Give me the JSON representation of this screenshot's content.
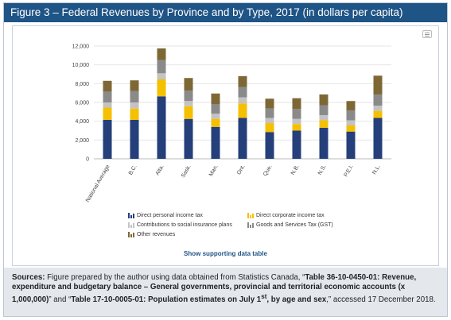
{
  "title": "Figure 3 – Federal Revenues by Province and by Type, 2017 (in dollars per capita)",
  "chart_menu_icon": "hamburger-menu-icon",
  "support_link": "Show supporting data table",
  "sources": {
    "label": "Sources:",
    "text1": " Figure prepared by the author using data obtained from Statistics Canada, “",
    "ref1": "Table 36-10-0450-01: Revenue, expenditure and budgetary balance – General governments, provincial and territorial economic accounts (x 1,000,000)",
    "text2": "” and “",
    "ref2_pre": "Table 17-10-0005-01: Population estimates on July 1",
    "ref2_sup": "st",
    "ref2_post": ", by age and sex",
    "text3": ",” accessed 17 December 2018."
  },
  "chart_data": {
    "type": "bar",
    "stacked": true,
    "title": "",
    "xlabel": "",
    "ylabel": "",
    "ylim": [
      0,
      12000
    ],
    "yticks": [
      0,
      2000,
      4000,
      6000,
      8000,
      10000,
      12000
    ],
    "ytick_labels": [
      "0",
      "2,000",
      "4,000",
      "6,000",
      "8,000",
      "10,000",
      "12,000"
    ],
    "grid": true,
    "legend_position": "bottom",
    "categories": [
      "National Average",
      "B.C.",
      "Alta.",
      "Sask.",
      "Man.",
      "Ont.",
      "Que.",
      "N.B.",
      "N.S.",
      "P.E.I.",
      "N.L."
    ],
    "series": [
      {
        "name": "Direct personal income tax",
        "color": "#243f7a",
        "values": [
          4150,
          4150,
          6650,
          4250,
          3400,
          4350,
          2850,
          3000,
          3300,
          2900,
          4350
        ]
      },
      {
        "name": "Direct corporate income tax",
        "color": "#f5c000",
        "values": [
          1300,
          1200,
          1800,
          1350,
          850,
          1550,
          950,
          700,
          800,
          650,
          750
        ]
      },
      {
        "name": "Contributions to social insurance plans",
        "color": "#c3c3c3",
        "values": [
          550,
          650,
          650,
          550,
          550,
          650,
          550,
          550,
          550,
          550,
          550
        ]
      },
      {
        "name": "Goods and Services Tax (GST)",
        "color": "#8a8a8a",
        "values": [
          1150,
          1200,
          1400,
          1100,
          1000,
          1100,
          1000,
          1050,
          1050,
          1050,
          1200
        ]
      },
      {
        "name": "Other revenues",
        "color": "#7d6835",
        "values": [
          1150,
          1150,
          1250,
          1350,
          1150,
          1150,
          1050,
          1150,
          1150,
          1000,
          2000
        ]
      }
    ]
  }
}
